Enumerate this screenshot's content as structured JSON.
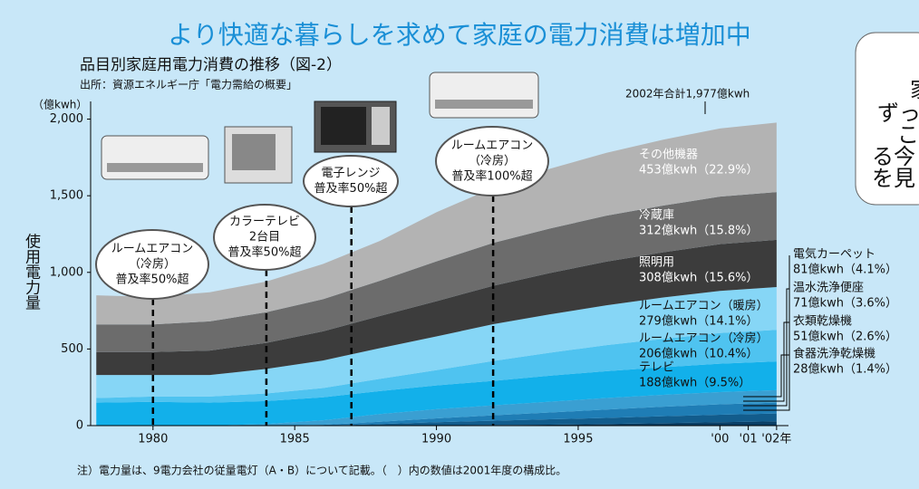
{
  "chart_data": {
    "type": "stacked-area",
    "title": "より快適な暮らしを求めて家庭の電力消費は増加中",
    "subtitle": "品目別家庭用電力消費の推移（図-2）",
    "source": "出所：資源エネルギー庁「電力需給の概要」",
    "y_unit": "（億kwh）",
    "y_label": "使用電力量",
    "total_note": "2002年合計1,977億kwh",
    "footnote": "注）電力量は、9電力会社の従量電灯（A・B）について記載。（　）内の数値は2001年度の構成比。",
    "x": [
      1978,
      1980,
      1982,
      1984,
      1986,
      1988,
      1990,
      1992,
      1994,
      1996,
      1998,
      2000,
      2002
    ],
    "xlim": [
      1977.8,
      2002.1
    ],
    "xticks": [
      1980,
      1985,
      1990,
      1995,
      {
        "value": 2000,
        "label": "'00"
      },
      {
        "value": 2001,
        "label": "'01"
      },
      {
        "value": 2002,
        "label": "'02年"
      }
    ],
    "ylim": [
      0,
      2080
    ],
    "yticks": [
      0,
      500,
      {
        "value": 1000,
        "label": "1,000"
      },
      {
        "value": 1500,
        "label": "1,500"
      },
      {
        "value": 2000,
        "label": "2,000"
      }
    ],
    "series": [
      {
        "name": "食器洗浄乾燥機",
        "note": "28億kwh（1.4%）",
        "color": "#0a3f66",
        "values": [
          0,
          0,
          0,
          0,
          0,
          0,
          2,
          4,
          6,
          10,
          16,
          22,
          28
        ]
      },
      {
        "name": "衣類乾燥機",
        "note": "51億kwh（2.6%）",
        "color": "#125c8c",
        "values": [
          0,
          0,
          0,
          0,
          0,
          10,
          20,
          28,
          35,
          40,
          45,
          49,
          51
        ]
      },
      {
        "name": "温水洗浄便座",
        "note": "71億kwh（3.6%）",
        "color": "#1f7db5",
        "values": [
          0,
          0,
          0,
          0,
          5,
          15,
          25,
          35,
          45,
          55,
          62,
          68,
          71
        ]
      },
      {
        "name": "電気カーペット",
        "note": "81億kwh（4.1%）",
        "color": "#3a9fd2",
        "values": [
          0,
          0,
          0,
          10,
          30,
          50,
          60,
          65,
          70,
          75,
          78,
          80,
          81
        ]
      },
      {
        "name": "テレビ",
        "note": "188億kwh（9.5%）",
        "color": "#12b0ea",
        "values": [
          150,
          155,
          150,
          150,
          150,
          150,
          155,
          160,
          170,
          175,
          180,
          185,
          188
        ]
      },
      {
        "name": "ルームエアコン（冷房）",
        "note": "206億kwh（10.4%）",
        "color": "#4fc3f0",
        "values": [
          30,
          35,
          40,
          50,
          60,
          80,
          100,
          130,
          150,
          170,
          185,
          200,
          206
        ]
      },
      {
        "name": "ルームエアコン（暖房）",
        "note": "279億kwh（14.1%）",
        "color": "#86d6f6",
        "values": [
          150,
          140,
          140,
          160,
          180,
          200,
          220,
          240,
          250,
          260,
          270,
          275,
          279
        ]
      },
      {
        "name": "照明用",
        "note": "308億kwh（15.6%）",
        "color": "#3c3c3c",
        "values": [
          150,
          150,
          160,
          170,
          190,
          210,
          230,
          250,
          270,
          285,
          295,
          305,
          308
        ]
      },
      {
        "name": "冷蔵庫",
        "note": "312億kwh（15.8%）",
        "color": "#6c6c6c",
        "values": [
          180,
          180,
          190,
          200,
          210,
          230,
          260,
          280,
          290,
          300,
          305,
          310,
          312
        ]
      },
      {
        "name": "その他機器",
        "note": "453億kwh（22.9%）",
        "color": "#b3b3b3",
        "values": [
          190,
          180,
          190,
          200,
          230,
          260,
          320,
          360,
          390,
          410,
          430,
          445,
          453
        ]
      }
    ],
    "annotations": [
      {
        "x": 1980,
        "lines": [
          "ルームエアコン",
          "（冷房）",
          "普及率50%超"
        ]
      },
      {
        "x": 1984,
        "lines": [
          "カラーテレビ",
          "2台目",
          "普及率50%超"
        ]
      },
      {
        "x": 1987,
        "lines": [
          "電子レンジ",
          "普及率50%超"
        ]
      },
      {
        "x": 1992,
        "lines": [
          "ルームエアコン",
          "（冷房）",
          "普及率100%超"
        ]
      }
    ]
  },
  "side_box": {
    "lines": [
      "家",
      "ずっ",
      "こ",
      "る今",
      "を見"
    ]
  }
}
